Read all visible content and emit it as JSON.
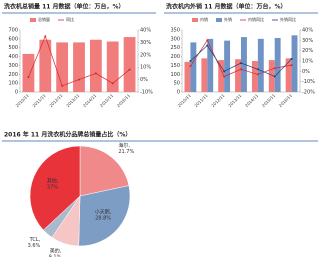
{
  "chart_data": [
    {
      "type": "bar",
      "title": "洗衣机总销量 11 月数据（单位：万台，%）",
      "categories": [
        "2010/11",
        "2011/11",
        "2012/11",
        "2013/11",
        "2014/11",
        "2015/11",
        "2016/11"
      ],
      "series": [
        {
          "name": "总销量",
          "type": "bar",
          "color": "#f07c7c",
          "values": [
            430,
            590,
            560,
            560,
            590,
            570,
            620
          ]
        },
        {
          "name": "同比",
          "type": "line",
          "axis": "y2",
          "color": "#d9262e",
          "values": [
            2,
            35,
            -5,
            0,
            5,
            -3,
            8
          ]
        }
      ],
      "ylim": [
        0,
        700
      ],
      "yticks": [
        0,
        100,
        200,
        300,
        400,
        500,
        600,
        700
      ],
      "y2lim": [
        -10,
        40
      ],
      "y2ticks": [
        {
          "value": -10,
          "label": "-10%"
        },
        {
          "value": 0,
          "label": "0%"
        },
        {
          "value": 10,
          "label": "10%"
        },
        {
          "value": 20,
          "label": "20%"
        },
        {
          "value": 30,
          "label": "30%"
        },
        {
          "value": 40,
          "label": "40%"
        }
      ],
      "grid": false
    },
    {
      "type": "bar",
      "title": "洗衣机内外销 11 月数据（单位：万台，%）",
      "categories": [
        "2010/11",
        "2011/11",
        "2012/11",
        "2013/11",
        "2014/11",
        "2015/11",
        "2016/11"
      ],
      "series": [
        {
          "name": "内销",
          "type": "bar",
          "color": "#f07c7c",
          "values": [
            170,
            190,
            180,
            185,
            175,
            180,
            190
          ]
        },
        {
          "name": "外销",
          "type": "bar",
          "color": "#6f93c4",
          "values": [
            280,
            300,
            290,
            310,
            300,
            305,
            320
          ]
        },
        {
          "name": "内销同比",
          "type": "line",
          "axis": "y2",
          "color": "#d9262e",
          "values": [
            5,
            30,
            -5,
            2,
            -3,
            3,
            6
          ]
        },
        {
          "name": "外销同比",
          "type": "line",
          "axis": "y2",
          "color": "#1f3f7a",
          "values": [
            10,
            25,
            0,
            8,
            2,
            -5,
            12
          ]
        }
      ],
      "ylim": [
        0,
        350
      ],
      "yticks": [
        0,
        50,
        100,
        150,
        200,
        250,
        300,
        350
      ],
      "y2lim": [
        -20,
        40
      ],
      "y2ticks": [
        {
          "value": -20,
          "label": "-20%"
        },
        {
          "value": -10,
          "label": "-10%"
        },
        {
          "value": 0,
          "label": "0%"
        },
        {
          "value": 10,
          "label": "10%"
        },
        {
          "value": 20,
          "label": "20%"
        },
        {
          "value": 30,
          "label": "30%"
        },
        {
          "value": 40,
          "label": "40%"
        }
      ],
      "grid": false
    },
    {
      "type": "pie",
      "title": "2016 年 11 月洗衣机分品牌总销量占比（%）",
      "categories": [
        "海尔,",
        "小天鹅,",
        "美的,",
        "TCL,",
        "其他,"
      ],
      "values": [
        21.7,
        28.8,
        9.1,
        3.6,
        37
      ],
      "value_labels": [
        "21.7%",
        "28.8%",
        "9.1%",
        "3.6%",
        "37%"
      ],
      "colors": [
        "#f08a8a",
        "#7d9dc4",
        "#f6c6c6",
        "#aab9cc",
        "#e8333a"
      ]
    }
  ]
}
